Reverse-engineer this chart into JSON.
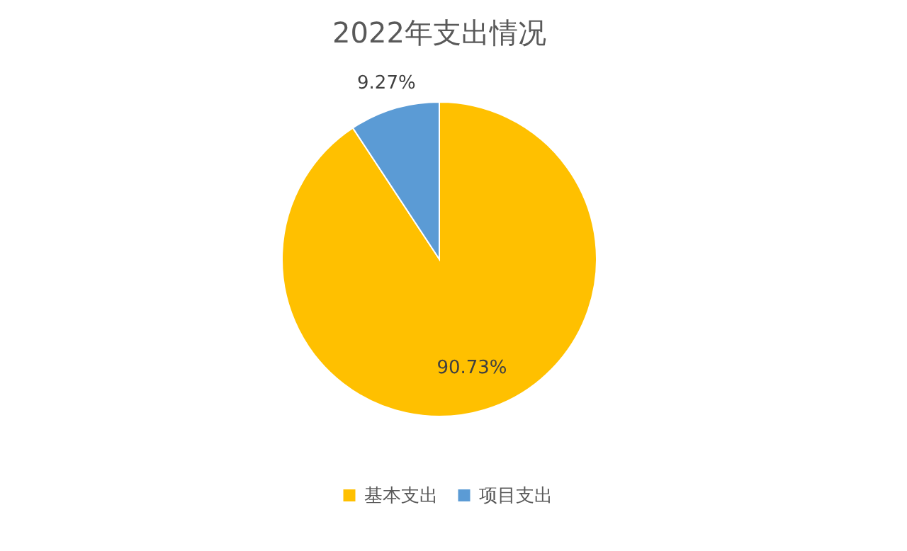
{
  "chart_data": {
    "type": "pie",
    "title": "2022年支出情况",
    "categories": [
      "基本支出",
      "项目支出"
    ],
    "values": [
      90.73,
      9.27
    ],
    "colors": [
      "#ffc000",
      "#5b9bd5"
    ],
    "value_labels": [
      "90.73%",
      "9.27%"
    ],
    "legend": "bottom"
  }
}
